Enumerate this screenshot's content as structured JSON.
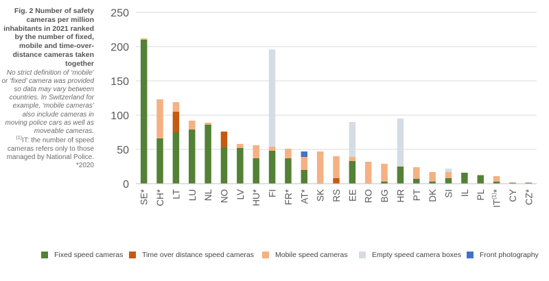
{
  "caption": {
    "title": "Fig. 2 Number of safety cameras per million inhabitants in 2021 ranked by the number of fixed, mobile and time-over-distance cameras taken together",
    "note": "No strict definition of ‘mobile’ or ‘fixed’ camera was provided so data may vary between countries. In Switzerland for example, ‘mobile cameras’ also include cameras in moving police cars as well as moveable cameras.",
    "footnote_marker": "(1)",
    "footnote": "IT: the number of speed cameras refers only to those managed by National Police.",
    "asof": "*2020"
  },
  "colors": {
    "fixed": "#538135",
    "tod": "#c55a11",
    "mobile": "#f4b183",
    "empty": "#d6dce5",
    "front": "#4472c4",
    "axis_text": "#595959",
    "grid": "#d9d9d9"
  },
  "chart_data": {
    "type": "bar",
    "stacked": true,
    "categories": [
      "SE*",
      "CH*",
      "LT",
      "LU",
      "NL",
      "NO",
      "LV",
      "HU*",
      "FI",
      "FR*",
      "AT*",
      "SK",
      "RS",
      "EE",
      "RO",
      "BG",
      "HR",
      "PT",
      "DK",
      "SI",
      "IL",
      "PL",
      "IT(1)*",
      "CY",
      "CZ*"
    ],
    "series": [
      {
        "key": "fixed",
        "name": "Fixed speed cameras",
        "values": [
          210,
          66,
          75,
          79,
          86,
          53,
          52,
          37,
          48,
          37,
          20,
          0,
          0,
          33,
          0,
          3,
          25,
          7,
          3,
          8,
          16,
          12,
          3,
          1.5,
          1.5
        ]
      },
      {
        "key": "tod",
        "name": "Time over distance speed cameras",
        "values": [
          0,
          0,
          30,
          0,
          0,
          23,
          0,
          0,
          0,
          0,
          0,
          0,
          8,
          0,
          0,
          0,
          0,
          0,
          0,
          0,
          0,
          0,
          0,
          0,
          0
        ]
      },
      {
        "key": "mobile",
        "name": "Mobile speed cameras",
        "values": [
          2,
          57,
          14,
          13,
          3,
          0,
          6,
          19,
          6,
          14,
          19,
          47,
          32,
          6,
          32,
          26,
          0,
          17,
          14,
          9,
          0,
          1,
          8,
          0,
          0
        ]
      },
      {
        "key": "empty",
        "name": "Empty speed camera boxes",
        "values": [
          0,
          0,
          0,
          0,
          0,
          0,
          0,
          0,
          142,
          0,
          0,
          0,
          0,
          51,
          0,
          0,
          70,
          0,
          0,
          5,
          0,
          0,
          0,
          0,
          0
        ]
      },
      {
        "key": "front",
        "name": "Front photography",
        "values": [
          0,
          0,
          0,
          0,
          0,
          0,
          0,
          0,
          0,
          0,
          8,
          0,
          0,
          0,
          0,
          0,
          0,
          0,
          0,
          0,
          0,
          0,
          0,
          0,
          0
        ]
      }
    ],
    "ylim": [
      0,
      250
    ],
    "yticks": [
      0,
      50,
      100,
      150,
      200,
      250
    ],
    "grid": true,
    "legend_position": "bottom"
  }
}
